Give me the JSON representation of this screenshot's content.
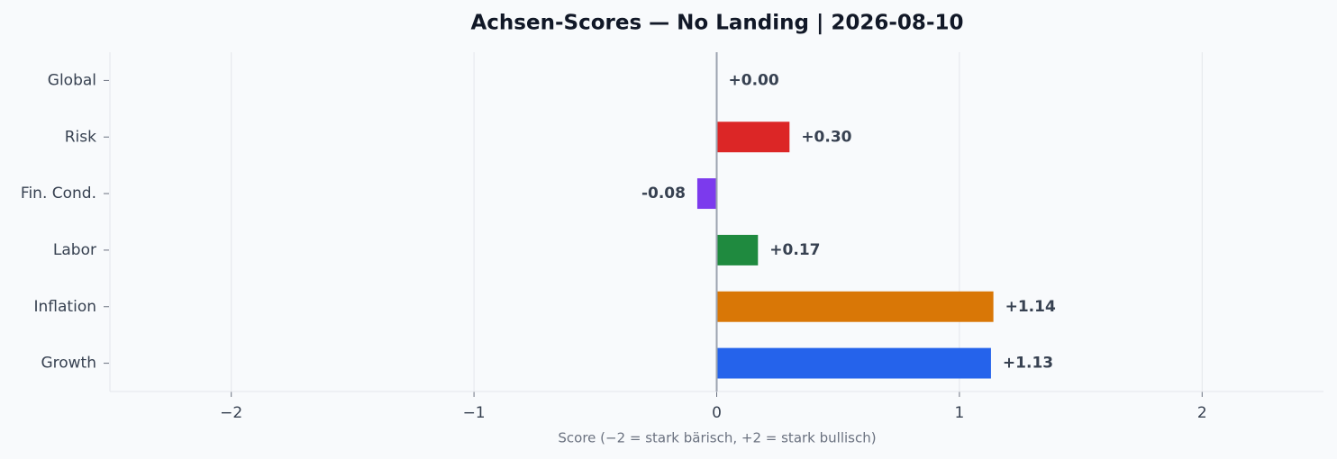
{
  "chart_data": {
    "type": "hbar",
    "title": "Achsen-Scores — No Landing | 2026-08-10",
    "xlabel": "Score (−2 = stark bärisch, +2 = stark bullisch)",
    "categories": [
      "Global",
      "Risk",
      "Fin. Cond.",
      "Labor",
      "Inflation",
      "Growth"
    ],
    "values": [
      0.0,
      0.3,
      -0.08,
      0.17,
      1.14,
      1.13
    ],
    "value_labels": [
      "+0.00",
      "+0.30",
      "-0.08",
      "+0.17",
      "+1.14",
      "+1.13"
    ],
    "colors": [
      "#64748b",
      "#dc2626",
      "#7c3aed",
      "#1f8a3f",
      "#d97706",
      "#2563eb"
    ],
    "xlim": [
      -2.5,
      2.5
    ],
    "xticks": [
      {
        "value": -2,
        "label": "−2"
      },
      {
        "value": -1,
        "label": "−1"
      },
      0,
      1,
      2
    ],
    "grid": true
  }
}
